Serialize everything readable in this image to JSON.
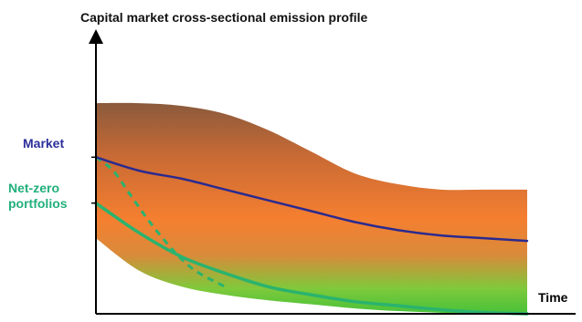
{
  "chart_data": {
    "type": "area",
    "title": "Capital market cross-sectional emission profile",
    "xlabel": "Time",
    "ylabel": "",
    "xlim": [
      0,
      1
    ],
    "ylim": [
      0,
      1
    ],
    "grid": false,
    "series": [
      {
        "name": "Market",
        "label_color": "#2b2f9a",
        "color": "#2b2a8f",
        "x": [
          0,
          0.1,
          0.2,
          0.3,
          0.4,
          0.5,
          0.6,
          0.7,
          0.8,
          0.9,
          1.0
        ],
        "y": [
          0.58,
          0.53,
          0.5,
          0.46,
          0.42,
          0.38,
          0.34,
          0.31,
          0.29,
          0.28,
          0.27
        ]
      },
      {
        "name": "Net-zero portfolios",
        "label_color": "#22b07a",
        "color": "#2ab36e",
        "x": [
          0,
          0.1,
          0.2,
          0.3,
          0.4,
          0.5,
          0.6,
          0.7,
          0.8,
          0.9,
          1.0
        ],
        "y": [
          0.41,
          0.3,
          0.21,
          0.15,
          0.1,
          0.07,
          0.045,
          0.03,
          0.015,
          0.005,
          0.0
        ]
      }
    ],
    "dashed_path": {
      "color": "#2ab36e",
      "x": [
        0,
        0.04,
        0.08,
        0.12,
        0.16,
        0.2,
        0.24,
        0.3
      ],
      "y": [
        0.58,
        0.53,
        0.44,
        0.35,
        0.27,
        0.2,
        0.15,
        0.1
      ]
    },
    "band": {
      "upper": {
        "x": [
          0,
          0.1,
          0.2,
          0.3,
          0.4,
          0.5,
          0.6,
          0.7,
          0.8,
          0.9,
          1.0
        ],
        "y": [
          0.78,
          0.78,
          0.77,
          0.74,
          0.68,
          0.6,
          0.52,
          0.48,
          0.46,
          0.46,
          0.46
        ]
      },
      "lower": {
        "x": [
          0,
          0.1,
          0.2,
          0.3,
          0.4,
          0.5,
          0.6,
          0.7,
          0.8,
          0.9,
          1.0
        ],
        "y": [
          0.28,
          0.16,
          0.1,
          0.07,
          0.05,
          0.035,
          0.02,
          0.01,
          0.004,
          0.0,
          0.0
        ]
      },
      "gradient": [
        "#8a5a3c",
        "#c86a35",
        "#f57f30",
        "#d98a3a",
        "#7fc93b",
        "#47c23a"
      ]
    },
    "axis_color": "#000000",
    "title_color": "#111111"
  }
}
